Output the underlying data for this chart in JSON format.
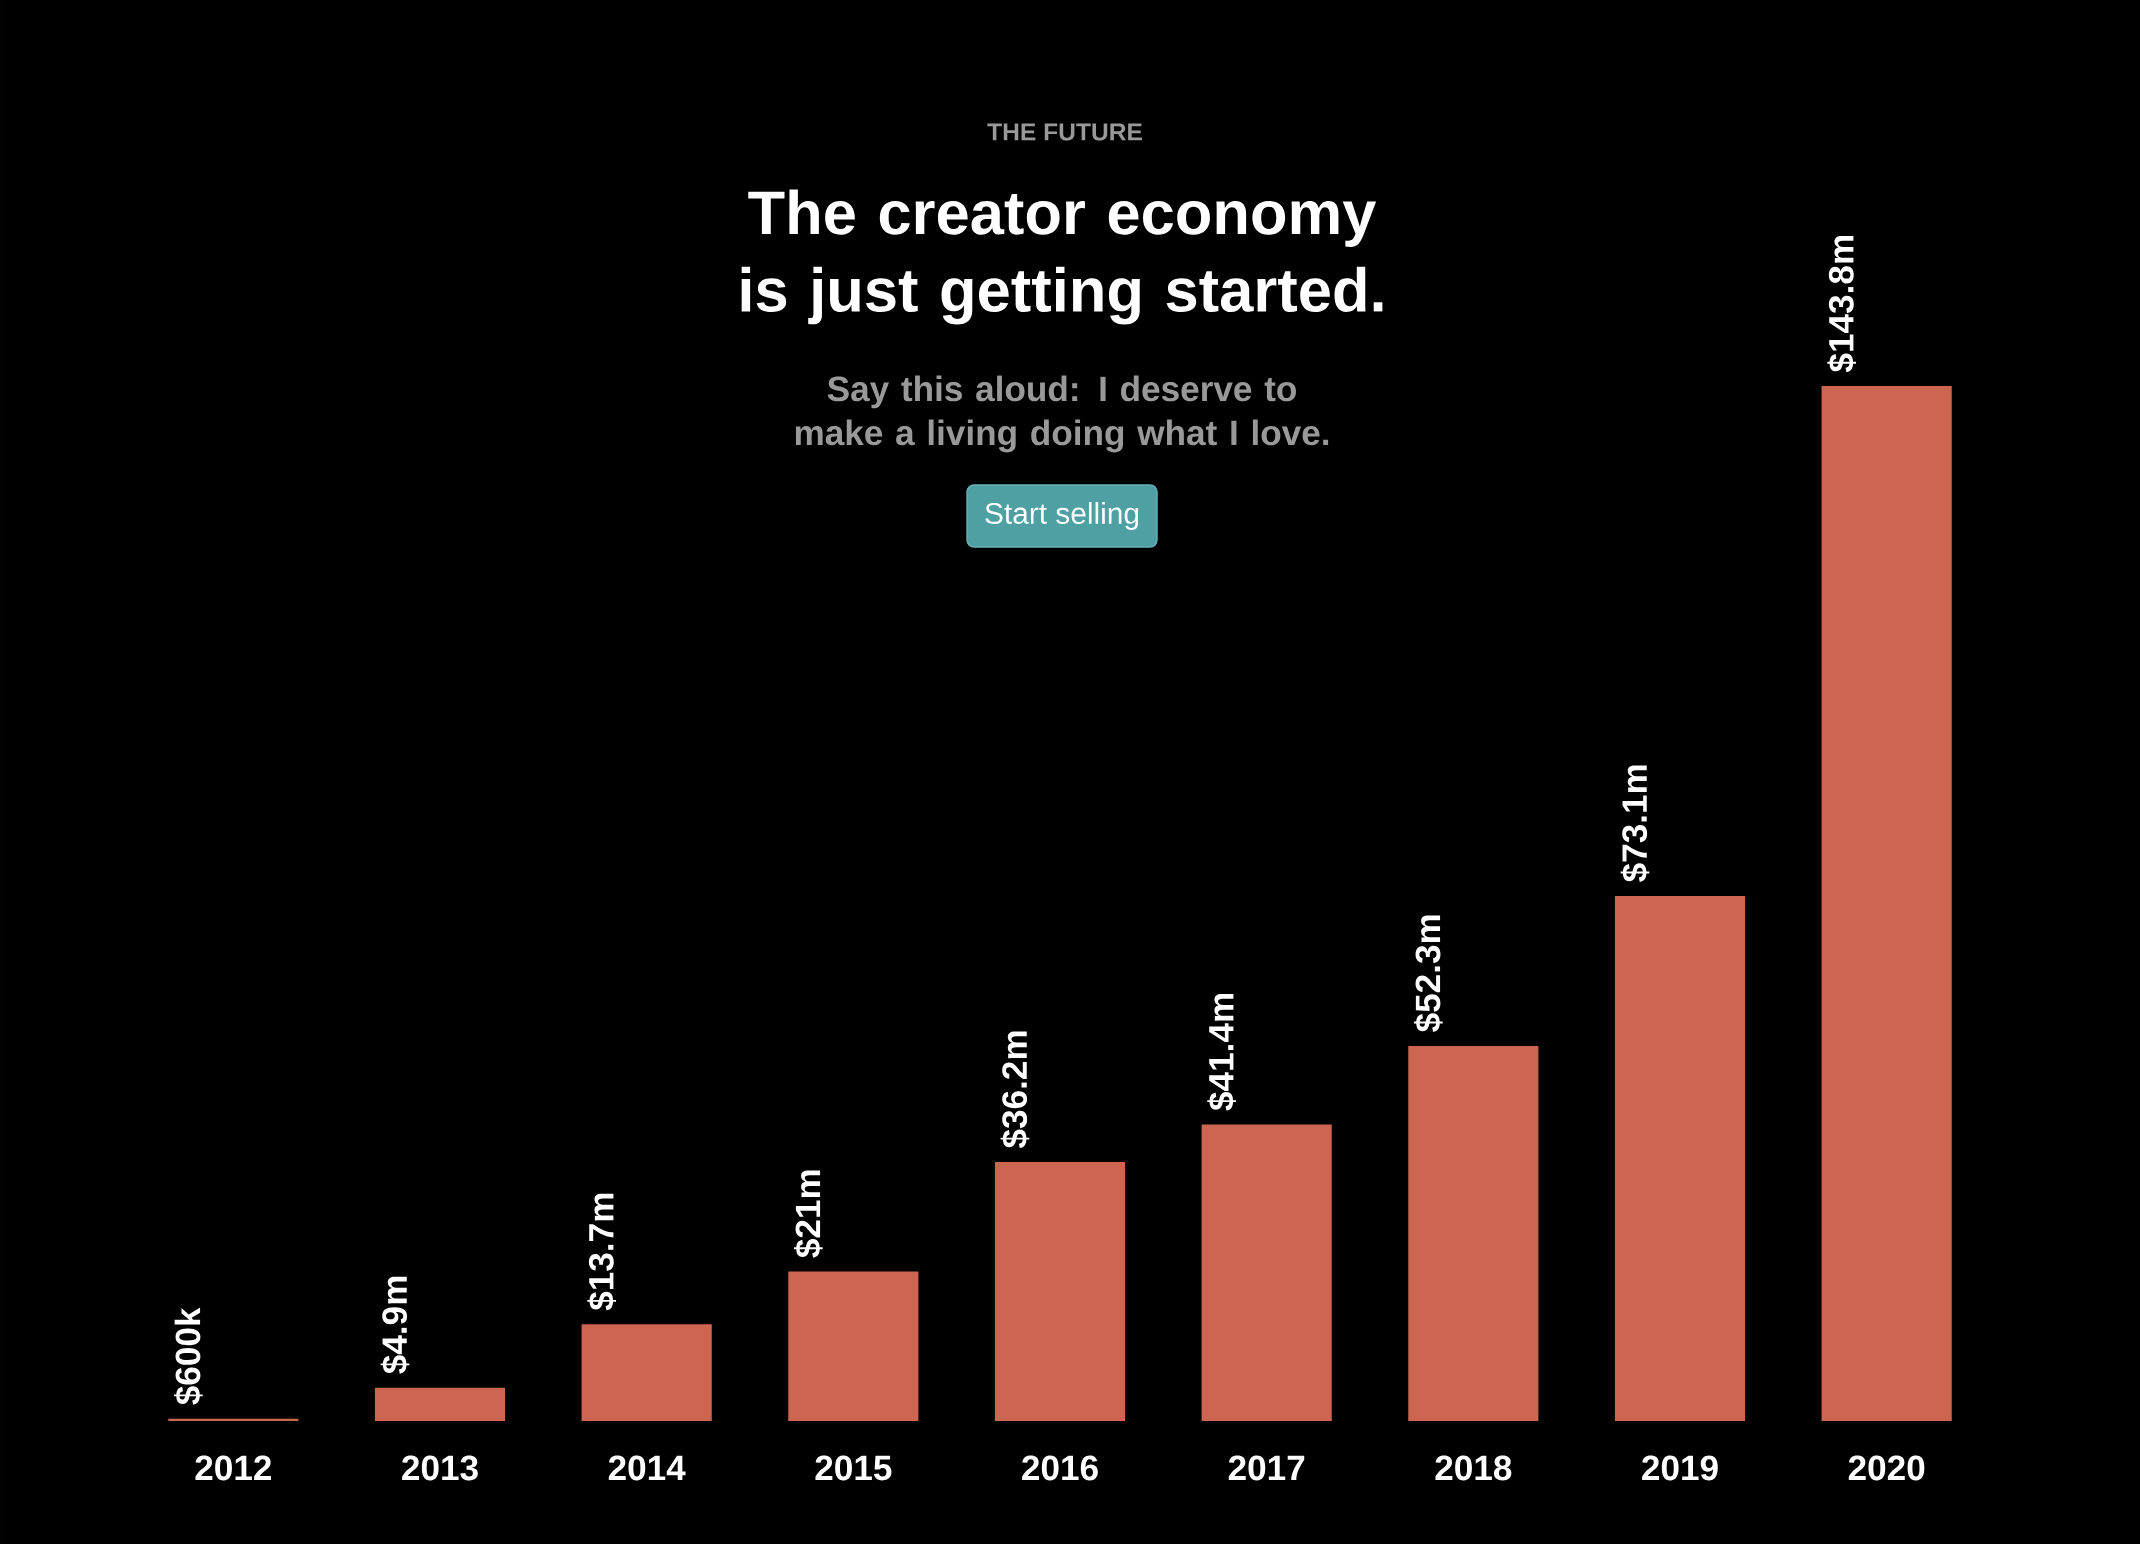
{
  "chart_data": {
    "type": "bar",
    "title": "The creator economy is just getting started.",
    "subtitle": "Say this aloud: I deserve to make a living doing what I love.",
    "annotations": [
      "THE FUTURE",
      "Start selling"
    ],
    "categories": [
      "2012",
      "2013",
      "2014",
      "2015",
      "2016",
      "2017",
      "2018",
      "2019",
      "2020"
    ],
    "values": [
      600000,
      4900000,
      13700000,
      21000000,
      36200000,
      41400000,
      52300000,
      73100000,
      143800000
    ],
    "value_labels": [
      "$600k",
      "$4.9m",
      "$13.7m",
      "$21m",
      "$36.2m",
      "$41.4m",
      "$52.3m",
      "$73.1m",
      "$143.8m"
    ],
    "color": "#cc6650"
  }
}
